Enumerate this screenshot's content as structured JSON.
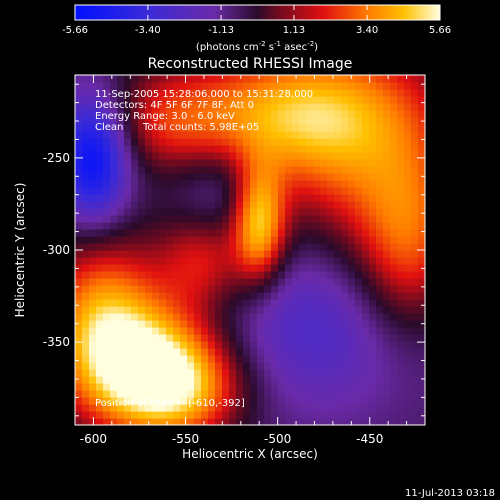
{
  "chart_data": {
    "type": "heatmap",
    "title": "Reconstructed RHESSI Image",
    "xlabel": "Heliocentric X (arcsec)",
    "ylabel": "Heliocentric Y (arcsec)",
    "xlim": [
      -610,
      -420
    ],
    "ylim": [
      -395,
      -205
    ],
    "x_ticks": [
      -600,
      -550,
      -500,
      -450
    ],
    "y_ticks": [
      -250,
      -300,
      -350
    ],
    "x_tick_labels": [
      "-600",
      "-550",
      "-500",
      "-450"
    ],
    "y_tick_labels": [
      "-250",
      "-300",
      "-350"
    ],
    "colorbar": {
      "min": -5.66,
      "max": 5.66,
      "tick_labels": [
        "-5.66",
        "-3.40",
        "-1.13",
        "1.13",
        "3.40",
        "5.66"
      ],
      "tick_values": [
        -5.66,
        -3.4,
        -1.13,
        1.13,
        3.4,
        5.66
      ],
      "unit_main": "(photons cm",
      "unit_exp1": "-2",
      "unit_mid": " s",
      "unit_exp2": "-1",
      "unit_mid2": " asec",
      "unit_exp3": "-2",
      "unit_end": ")"
    },
    "blobs": [
      {
        "x": -575,
        "y": -360,
        "v": 5.0,
        "sx": 30,
        "sy": 25
      },
      {
        "x": -555,
        "y": -375,
        "v": 4.2,
        "sx": 25,
        "sy": 20
      },
      {
        "x": -595,
        "y": -330,
        "v": 3.5,
        "sx": 22,
        "sy": 30
      },
      {
        "x": -510,
        "y": -285,
        "v": 5.2,
        "sx": 10,
        "sy": 22
      },
      {
        "x": -540,
        "y": -305,
        "v": 3.0,
        "sx": 18,
        "sy": 20
      },
      {
        "x": -460,
        "y": -240,
        "v": 3.6,
        "sx": 40,
        "sy": 40
      },
      {
        "x": -430,
        "y": -300,
        "v": 3.4,
        "sx": 20,
        "sy": 35
      },
      {
        "x": -500,
        "y": -225,
        "v": 3.2,
        "sx": 40,
        "sy": 22
      },
      {
        "x": -560,
        "y": -230,
        "v": 2.2,
        "sx": 25,
        "sy": 20
      },
      {
        "x": -600,
        "y": -250,
        "v": -5.0,
        "sx": 14,
        "sy": 25
      },
      {
        "x": -480,
        "y": -340,
        "v": -2.2,
        "sx": 50,
        "sy": 35
      },
      {
        "x": -530,
        "y": -270,
        "v": -1.6,
        "sx": 20,
        "sy": 20
      }
    ]
  },
  "info": {
    "line1": "11-Sep-2005 15:28:06.000 to 15:31:28.000",
    "line2": "Detectors: 4F 5F 6F 7F 8F, Att 0",
    "line3": "Energy Range: 3.0 - 6.0 keV",
    "line4_a": "Clean",
    "line4_b": "Total counts: 5.98E+05",
    "peak": "Position of Peak = [-610,-392]"
  },
  "footer": {
    "date": "11-Jul-2013 03:18"
  },
  "colors": {
    "background": "#000000",
    "foreground": "#ffffff"
  }
}
